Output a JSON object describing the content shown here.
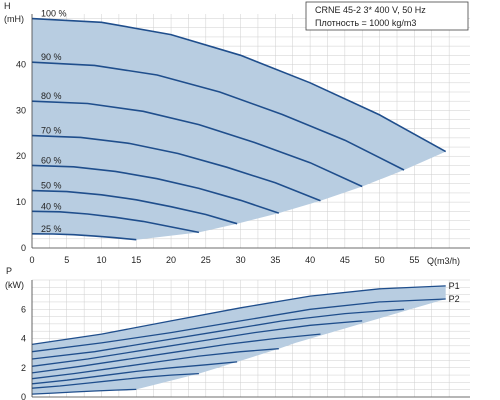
{
  "chart_data": [
    {
      "type": "line",
      "panel": "head",
      "ylabel": "H",
      "yunit": "(mH)",
      "xlabel": "Q(m3/h)",
      "xlim": [
        0,
        63
      ],
      "ylim": [
        0,
        51
      ],
      "xticks": [
        0,
        5,
        10,
        15,
        20,
        25,
        30,
        35,
        40,
        45,
        50,
        55
      ],
      "yticks": [
        0,
        10,
        20,
        30,
        40
      ],
      "grid": true,
      "info_lines": [
        "CRNE 45-2   3* 400 V, 50 Hz",
        "Плотность = 1000 kg/m3"
      ],
      "series": [
        {
          "name": "100 %",
          "x": [
            0,
            10,
            20,
            30,
            40,
            50,
            59.5
          ],
          "y": [
            50,
            49.2,
            46.5,
            42,
            36,
            29,
            21
          ]
        },
        {
          "name": "90 %",
          "x": [
            0,
            9,
            18,
            27,
            36,
            45,
            53.5
          ],
          "y": [
            40.5,
            39.8,
            37.7,
            34,
            29.1,
            23.5,
            17
          ]
        },
        {
          "name": "80 %",
          "x": [
            0,
            8,
            16,
            24,
            32,
            40,
            47.5
          ],
          "y": [
            32,
            31.5,
            29.8,
            26.9,
            23,
            18.6,
            13.4
          ]
        },
        {
          "name": "70 %",
          "x": [
            0,
            7,
            14,
            21,
            28,
            35,
            41.5
          ],
          "y": [
            24.5,
            24.1,
            22.8,
            20.6,
            17.6,
            14.2,
            10.3
          ]
        },
        {
          "name": "60 %",
          "x": [
            0,
            6,
            12,
            18,
            24,
            30,
            35.5
          ],
          "y": [
            18,
            17.7,
            16.7,
            15.1,
            13,
            10.4,
            7.6
          ]
        },
        {
          "name": "50 %",
          "x": [
            0,
            5,
            10,
            15,
            20,
            25,
            29.5
          ],
          "y": [
            12.5,
            12.3,
            11.6,
            10.5,
            9,
            7.3,
            5.3
          ]
        },
        {
          "name": "40 %",
          "x": [
            0,
            4,
            8,
            12,
            16,
            20,
            24
          ],
          "y": [
            8,
            7.9,
            7.4,
            6.7,
            5.8,
            4.6,
            3.4
          ]
        },
        {
          "name": "25 %",
          "x": [
            0,
            3,
            6,
            9,
            12,
            15
          ],
          "y": [
            3.1,
            3.05,
            2.9,
            2.6,
            2.25,
            1.8
          ]
        }
      ]
    },
    {
      "type": "line",
      "panel": "power",
      "ylabel": "P",
      "yunit": "(kW)",
      "xlim": [
        0,
        63
      ],
      "ylim": [
        0,
        8
      ],
      "yticks": [
        0,
        2,
        4,
        6
      ],
      "grid": true,
      "series": [
        {
          "name": "P1",
          "x": [
            0,
            10,
            20,
            30,
            40,
            50,
            59.5
          ],
          "y": [
            3.6,
            4.3,
            5.2,
            6.1,
            6.9,
            7.4,
            7.6
          ]
        },
        {
          "name": "P2",
          "x": [
            0,
            10,
            20,
            30,
            40,
            50,
            59.5
          ],
          "y": [
            3.1,
            3.7,
            4.4,
            5.2,
            6.0,
            6.5,
            6.7
          ]
        },
        {
          "name": "",
          "x": [
            0,
            9,
            18,
            27,
            36,
            45,
            53.5
          ],
          "y": [
            2.6,
            3.1,
            3.8,
            4.5,
            5.2,
            5.7,
            6.0
          ]
        },
        {
          "name": "",
          "x": [
            0,
            8,
            16,
            24,
            32,
            40,
            47.5
          ],
          "y": [
            2.1,
            2.6,
            3.2,
            3.8,
            4.4,
            4.9,
            5.2
          ]
        },
        {
          "name": "",
          "x": [
            0,
            7,
            14,
            21,
            28,
            35,
            41.5
          ],
          "y": [
            1.65,
            2.1,
            2.6,
            3.1,
            3.6,
            4.0,
            4.3
          ]
        },
        {
          "name": "",
          "x": [
            0,
            6,
            12,
            18,
            24,
            30,
            35.5
          ],
          "y": [
            1.25,
            1.6,
            2.0,
            2.4,
            2.8,
            3.1,
            3.3
          ]
        },
        {
          "name": "",
          "x": [
            0,
            5,
            10,
            15,
            20,
            25,
            29.5
          ],
          "y": [
            0.9,
            1.15,
            1.45,
            1.75,
            2.0,
            2.2,
            2.4
          ]
        },
        {
          "name": "",
          "x": [
            0,
            4,
            8,
            12,
            16,
            20,
            24
          ],
          "y": [
            0.6,
            0.75,
            0.95,
            1.15,
            1.35,
            1.5,
            1.6
          ]
        },
        {
          "name": "",
          "x": [
            0,
            3,
            6,
            9,
            12,
            15
          ],
          "y": [
            0.2,
            0.27,
            0.34,
            0.41,
            0.47,
            0.52
          ]
        }
      ]
    }
  ],
  "colors": {
    "curve": "#1f4e8c",
    "area_fill": "#b8cde1",
    "grid": "#cfcfcf",
    "axis": "#444444",
    "text": "#222222"
  }
}
